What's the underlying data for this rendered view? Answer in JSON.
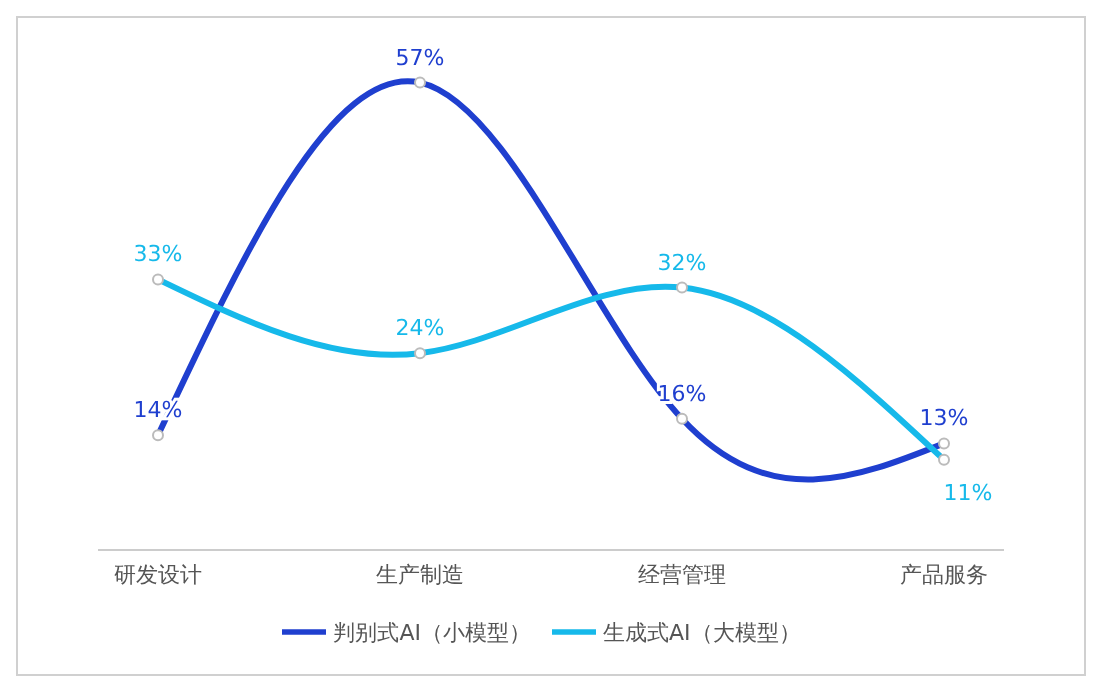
{
  "chart_data": {
    "type": "line",
    "categories": [
      "研发设计",
      "生产制造",
      "经营管理",
      "产品服务"
    ],
    "series": [
      {
        "name": "判别式AI（小模型）",
        "color": "#1f3fcf",
        "values": [
          14,
          57,
          16,
          13
        ],
        "value_labels": [
          "14%",
          "57%",
          "16%",
          "13%"
        ]
      },
      {
        "name": "生成式AI（大模型）",
        "color": "#16b9ea",
        "values": [
          33,
          24,
          32,
          11
        ],
        "value_labels": [
          "33%",
          "24%",
          "32%",
          "11%"
        ]
      }
    ],
    "legend": "bottom",
    "grid": false,
    "marker": "circle",
    "line_style": "solid"
  }
}
